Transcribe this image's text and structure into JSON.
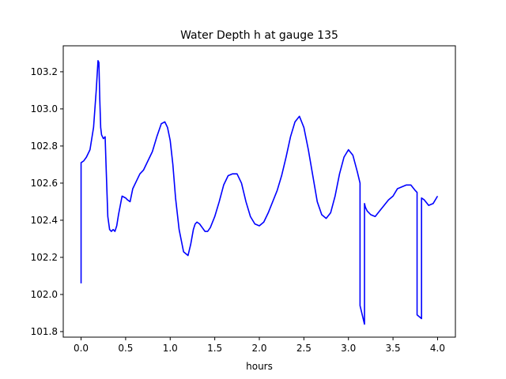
{
  "chart_data": {
    "type": "line",
    "title": "Water Depth h at gauge 135",
    "xlabel": "hours",
    "ylabel": "",
    "xlim": [
      -0.2,
      4.2
    ],
    "ylim": [
      101.77,
      103.34
    ],
    "grid": false,
    "x_ticks": [
      "0.0",
      "0.5",
      "1.0",
      "1.5",
      "2.0",
      "2.5",
      "3.0",
      "3.5",
      "4.0"
    ],
    "y_ticks": [
      "101.8",
      "102.0",
      "102.2",
      "102.4",
      "102.6",
      "102.8",
      "103.0",
      "103.2"
    ],
    "series": [
      {
        "color": "#0000ff",
        "x": [
          0.0,
          0.0,
          0.03,
          0.06,
          0.1,
          0.14,
          0.17,
          0.19,
          0.2,
          0.21,
          0.22,
          0.23,
          0.25,
          0.27,
          0.28,
          0.3,
          0.32,
          0.34,
          0.36,
          0.38,
          0.4,
          0.42,
          0.44,
          0.46,
          0.5,
          0.52,
          0.55,
          0.58,
          0.62,
          0.66,
          0.7,
          0.75,
          0.8,
          0.85,
          0.9,
          0.94,
          0.97,
          1.0,
          1.03,
          1.06,
          1.1,
          1.15,
          1.2,
          1.23,
          1.26,
          1.28,
          1.3,
          1.33,
          1.36,
          1.39,
          1.42,
          1.45,
          1.5,
          1.55,
          1.6,
          1.65,
          1.7,
          1.75,
          1.8,
          1.85,
          1.9,
          1.95,
          2.0,
          2.05,
          2.1,
          2.15,
          2.2,
          2.25,
          2.3,
          2.35,
          2.4,
          2.45,
          2.5,
          2.55,
          2.6,
          2.65,
          2.7,
          2.75,
          2.8,
          2.85,
          2.9,
          2.95,
          3.0,
          3.05,
          3.1,
          3.13,
          3.13,
          3.18,
          3.18,
          3.19,
          3.21,
          3.25,
          3.3,
          3.35,
          3.4,
          3.45,
          3.5,
          3.55,
          3.6,
          3.65,
          3.7,
          3.75,
          3.77,
          3.77,
          3.82,
          3.82,
          3.85,
          3.9,
          3.95,
          4.0
        ],
        "y": [
          102.06,
          102.71,
          102.72,
          102.74,
          102.78,
          102.9,
          103.1,
          103.26,
          103.25,
          103.05,
          102.9,
          102.86,
          102.84,
          102.85,
          102.7,
          102.42,
          102.35,
          102.34,
          102.35,
          102.34,
          102.37,
          102.43,
          102.48,
          102.53,
          102.52,
          102.51,
          102.5,
          102.57,
          102.61,
          102.65,
          102.67,
          102.72,
          102.77,
          102.85,
          102.92,
          102.93,
          102.9,
          102.83,
          102.7,
          102.52,
          102.35,
          102.23,
          102.21,
          102.27,
          102.35,
          102.38,
          102.39,
          102.38,
          102.36,
          102.34,
          102.34,
          102.36,
          102.42,
          102.5,
          102.59,
          102.64,
          102.65,
          102.65,
          102.6,
          102.5,
          102.42,
          102.38,
          102.37,
          102.39,
          102.44,
          102.5,
          102.56,
          102.64,
          102.74,
          102.85,
          102.93,
          102.96,
          102.9,
          102.78,
          102.64,
          102.5,
          102.43,
          102.41,
          102.44,
          102.53,
          102.65,
          102.74,
          102.78,
          102.75,
          102.66,
          102.6,
          101.94,
          101.84,
          102.49,
          102.47,
          102.45,
          102.43,
          102.42,
          102.45,
          102.48,
          102.51,
          102.53,
          102.57,
          102.58,
          102.59,
          102.59,
          102.56,
          102.55,
          101.89,
          101.87,
          102.52,
          102.51,
          102.48,
          102.49,
          102.53
        ]
      }
    ]
  }
}
